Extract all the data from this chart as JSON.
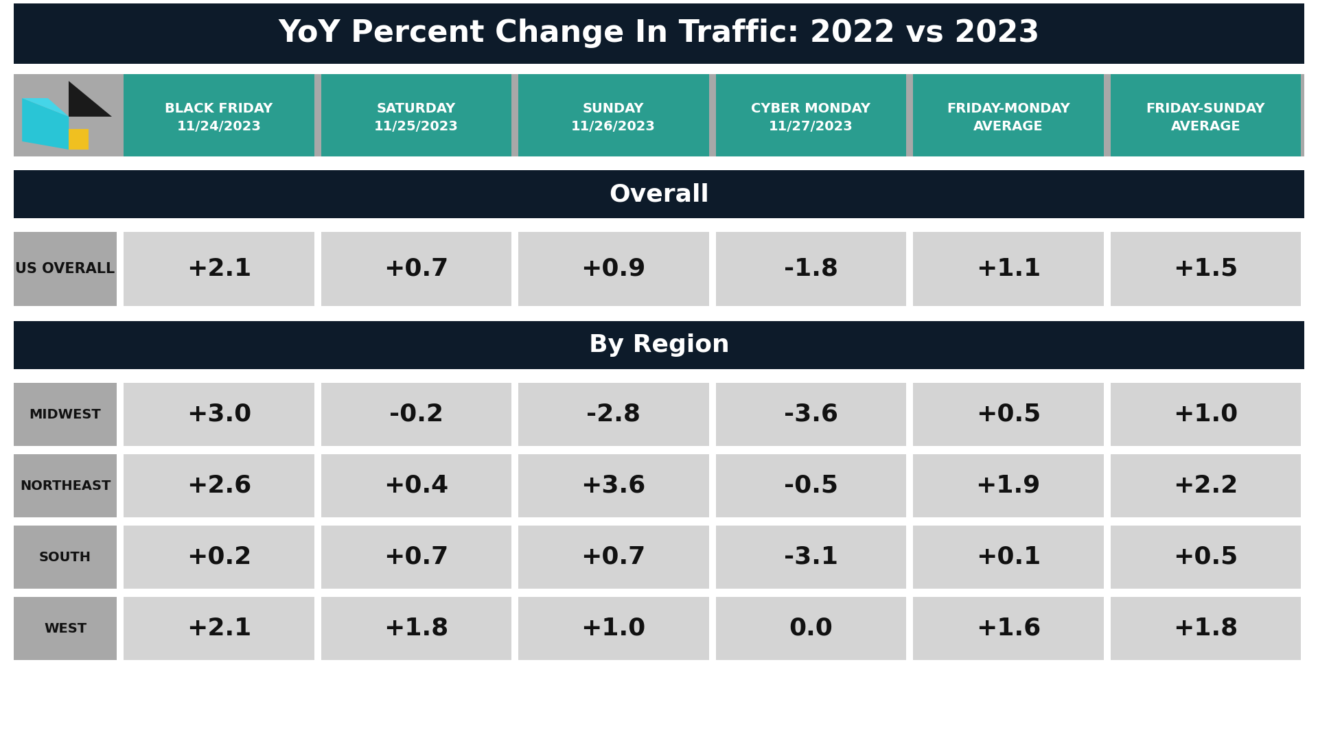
{
  "title": "YoY Percent Change In Traffic: 2022 vs 2023",
  "title_bg": "#0d1b2a",
  "title_color": "#ffffff",
  "header_bg": "#2a9d8f",
  "header_color": "#ffffff",
  "section_bg": "#0d1b2a",
  "section_color": "#ffffff",
  "row_label_bg": "#a8a8a8",
  "row_label_color": "#111111",
  "cell_bg": "#d4d4d4",
  "cell_color": "#111111",
  "bg_color": "#ffffff",
  "columns": [
    [
      "BLACK FRIDAY",
      "11/24/2023"
    ],
    [
      "SATURDAY",
      "11/25/2023"
    ],
    [
      "SUNDAY",
      "11/26/2023"
    ],
    [
      "CYBER MONDAY",
      "11/27/2023"
    ],
    [
      "FRIDAY-MONDAY",
      "AVERAGE"
    ],
    [
      "FRIDAY-SUNDAY",
      "AVERAGE"
    ]
  ],
  "overall_label": "Overall",
  "region_label": "By Region",
  "rows_overall": [
    {
      "label": "US OVERALL",
      "values": [
        "+2.1",
        "+0.7",
        "+0.9",
        "-1.8",
        "+1.1",
        "+1.5"
      ]
    }
  ],
  "rows_region": [
    {
      "label": "MIDWEST",
      "values": [
        "+3.0",
        "-0.2",
        "-2.8",
        "-3.6",
        "+0.5",
        "+1.0"
      ]
    },
    {
      "label": "NORTHEAST",
      "values": [
        "+2.6",
        "+0.4",
        "+3.6",
        "-0.5",
        "+1.9",
        "+2.2"
      ]
    },
    {
      "label": "SOUTH",
      "values": [
        "+0.2",
        "+0.7",
        "+0.7",
        "-3.1",
        "+0.1",
        "+0.5"
      ]
    },
    {
      "label": "WEST",
      "values": [
        "+2.1",
        "+1.8",
        "+1.0",
        "0.0",
        "+1.6",
        "+1.8"
      ]
    }
  ],
  "logo_blue": "#29c5d6",
  "logo_yellow": "#f0c020",
  "logo_dark": "#1a1a1a"
}
